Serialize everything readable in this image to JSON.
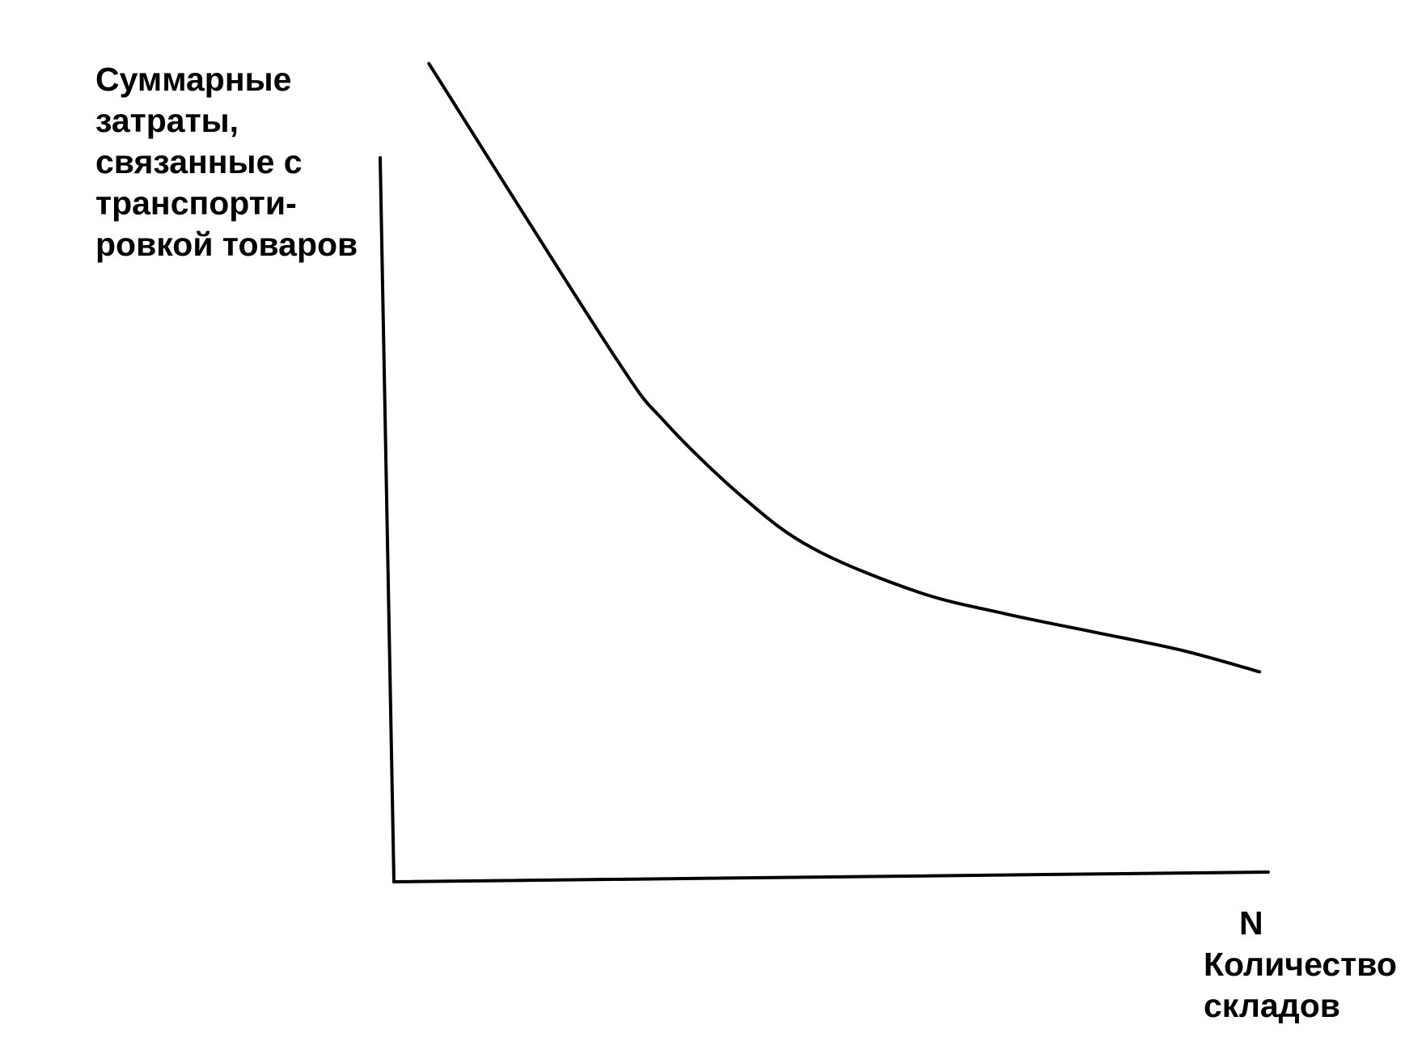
{
  "chart_data": {
    "type": "line",
    "title": "",
    "ylabel_lines": [
      "Суммарные",
      "затраты,",
      "связанные с",
      "транспорти-",
      "ровкой товаров"
    ],
    "xlabel_symbol": "N",
    "xlabel_lines": [
      "Количество",
      "складов"
    ],
    "grid": false,
    "legend": "none",
    "xlim": [
      0,
      10
    ],
    "ylim": [
      0,
      10
    ],
    "series": [
      {
        "x": [
          0.4,
          2.5,
          3.1,
          4.0,
          4.8,
          6.0,
          7.0,
          8.0,
          9.0,
          9.9
        ],
        "y": [
          11.3,
          7.3,
          6.35,
          5.3,
          4.6,
          4.0,
          3.7,
          3.45,
          3.2,
          2.9
        ]
      }
    ],
    "colors": {
      "line": "#000000",
      "axis": "#000000",
      "background": "#ffffff"
    }
  }
}
